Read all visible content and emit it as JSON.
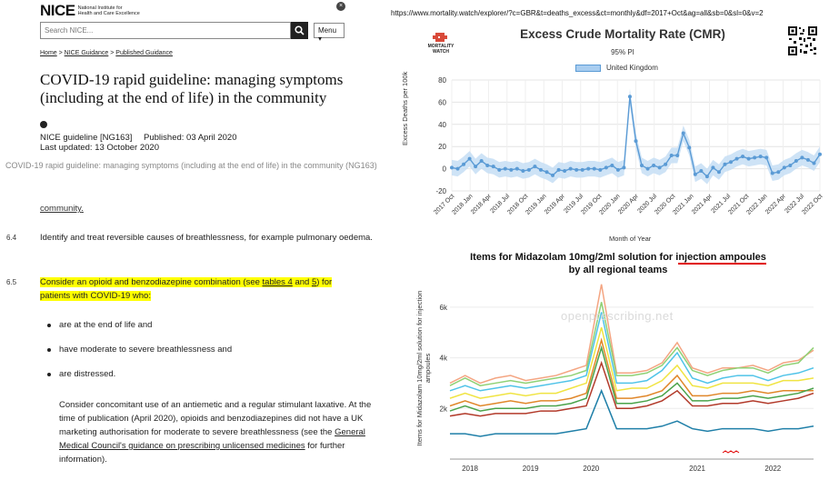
{
  "nice": {
    "logo_mark": "NICE",
    "logo_sub_1": "National Institute for",
    "logo_sub_2": "Health and Care Excellence",
    "search_placeholder": "Search NICE...",
    "menu_label": "Menu ▾",
    "breadcrumb": [
      "Home",
      "NICE Guidance",
      "Published Guidance"
    ],
    "title": "COVID-19 rapid guideline: managing symptoms (including at the end of life) in the community",
    "guideline_code": "NICE guideline [NG163]",
    "published": "Published: 03 April 2020",
    "updated": "Last updated: 13 October 2020",
    "grey_header": "COVID-19 rapid guideline: managing symptoms (including at the end of life) in the community (NG163)",
    "community_link": "community",
    "p64_num": "6.4",
    "p64_text": "Identify and treat reversible causes of breathlessness, for example pulmonary oedema.",
    "p65_num": "6.5",
    "p65_text_a": "Consider an opioid and benzodiazepine combination (see ",
    "p65_link_a": "tables 4",
    "p65_text_b": " and ",
    "p65_link_b": "5",
    "p65_text_c": ") for",
    "p65_line2": "patients with COVID-19 who:",
    "bullets": [
      "are at the end of life and",
      "have moderate to severe breathlessness and",
      "are distressed."
    ],
    "conc_a": "Consider concomitant use of an antiemetic and a regular stimulant laxative. At the time of publication (April 2020), opioids and benzodiazepines did not have a UK marketing authorisation for moderate to severe breathlessness (see the ",
    "conc_link": "General Medical Council's guidance on prescribing unlicensed medicines",
    "conc_b": " for further information)."
  },
  "url": "https://www.mortality.watch/explorer/?c=GBR&t=deaths_excess&ct=monthly&df=2017+Oct&ag=all&sb=0&sl=0&v=2",
  "mw_logo_text": "MORTALITY WATCH",
  "cmr": {
    "title": "Excess Crude Mortality Rate (CMR)",
    "subtitle": "95% PI",
    "legend": "United Kingdom",
    "ylabel": "Excess Deaths per 100k",
    "xlabel": "Month of Year",
    "colors": {
      "line": "#5b9bd5",
      "band": "#c6def4"
    }
  },
  "mid": {
    "title_a": "Items for Midazolam 10mg/2ml solution for i",
    "title_ul": "njection ampoules",
    "title_line2": "by all regional teams",
    "ylabel": "Items for Midazolam 10mg/2ml solution for injection ampoules",
    "watermark": "openprescribing.net"
  },
  "chart_data": [
    {
      "type": "line",
      "title": "Excess Crude Mortality Rate (CMR)",
      "subtitle": "95% PI",
      "xlabel": "Month of Year",
      "ylabel": "Excess Deaths per 100k",
      "ylim": [
        -20,
        80
      ],
      "yticks": [
        -20,
        0,
        20,
        40,
        60,
        80
      ],
      "xticks": [
        "2017 Oct",
        "2018 Jan",
        "2018 Apr",
        "2018 Jul",
        "2018 Oct",
        "2019 Jan",
        "2019 Apr",
        "2019 Jul",
        "2019 Oct",
        "2020 Jan",
        "2020 Apr",
        "2020 Jul",
        "2020 Oct",
        "2021 Jan",
        "2021 Apr",
        "2021 Jul",
        "2021 Oct",
        "2022 Jan",
        "2022 Apr",
        "2022 Jul",
        "2022 Oct"
      ],
      "grid": true,
      "legend_position": "top",
      "series": [
        {
          "name": "United Kingdom",
          "x": [
            "2017 Oct",
            "2017 Nov",
            "2017 Dec",
            "2018 Jan",
            "2018 Feb",
            "2018 Mar",
            "2018 Apr",
            "2018 May",
            "2018 Jun",
            "2018 Jul",
            "2018 Aug",
            "2018 Sep",
            "2018 Oct",
            "2018 Nov",
            "2018 Dec",
            "2019 Jan",
            "2019 Feb",
            "2019 Mar",
            "2019 Apr",
            "2019 May",
            "2019 Jun",
            "2019 Jul",
            "2019 Aug",
            "2019 Sep",
            "2019 Oct",
            "2019 Nov",
            "2019 Dec",
            "2020 Jan",
            "2020 Feb",
            "2020 Mar",
            "2020 Apr",
            "2020 May",
            "2020 Jun",
            "2020 Jul",
            "2020 Aug",
            "2020 Sep",
            "2020 Oct",
            "2020 Nov",
            "2020 Dec",
            "2021 Jan",
            "2021 Feb",
            "2021 Mar",
            "2021 Apr",
            "2021 May",
            "2021 Jun",
            "2021 Jul",
            "2021 Aug",
            "2021 Sep",
            "2021 Oct",
            "2021 Nov",
            "2021 Dec",
            "2022 Jan",
            "2022 Feb",
            "2022 Mar",
            "2022 Apr",
            "2022 May",
            "2022 Jun",
            "2022 Jul",
            "2022 Aug",
            "2022 Sep",
            "2022 Oct",
            "2022 Nov",
            "2022 Dec"
          ],
          "values": [
            1,
            0,
            4,
            9,
            2,
            7,
            3,
            2,
            -1,
            0,
            -1,
            0,
            -2,
            -1,
            2,
            -1,
            -3,
            -6,
            -1,
            -2,
            0,
            -1,
            -1,
            0,
            0,
            -1,
            1,
            3,
            -1,
            1,
            65,
            25,
            3,
            0,
            3,
            1,
            4,
            12,
            12,
            32,
            19,
            -5,
            -2,
            -7,
            1,
            -3,
            4,
            6,
            9,
            11,
            9,
            10,
            11,
            10,
            -4,
            -3,
            1,
            3,
            7,
            10,
            8,
            5,
            13
          ],
          "band_halfwidth": 7
        }
      ]
    },
    {
      "type": "line",
      "title": "Items for Midazolam 10mg/2ml solution for injection ampoules by all regional teams",
      "ylabel": "Items for Midazolam 10mg/2ml solution for injection ampoules",
      "ylim": [
        0,
        7000
      ],
      "yticks": [
        "2k",
        "4k",
        "6k"
      ],
      "xticks": [
        "2018",
        "2019",
        "2020",
        "2021",
        "2022"
      ],
      "x": [
        "2018 Jan",
        "2018 Apr",
        "2018 Jul",
        "2018 Oct",
        "2019 Jan",
        "2019 Apr",
        "2019 Jul",
        "2019 Oct",
        "2020 Jan",
        "2020 Mar",
        "2020 Apr",
        "2020 May",
        "2020 Jul",
        "2020 Oct",
        "2020 Dec",
        "2021 Jan",
        "2021 Feb",
        "2021 Apr",
        "2021 Jul",
        "2021 Oct",
        "2022 Jan",
        "2022 Apr",
        "2022 Jul",
        "2022 Oct",
        "2022 Dec"
      ],
      "series": [
        {
          "color": "#f4a582",
          "values": [
            3000,
            3300,
            3000,
            3200,
            3300,
            3100,
            3200,
            3300,
            3500,
            3700,
            6900,
            3400,
            3400,
            3500,
            3800,
            4600,
            3600,
            3400,
            3600,
            3600,
            3700,
            3500,
            3800,
            3900,
            4300
          ]
        },
        {
          "color": "#8fd175",
          "values": [
            2900,
            3200,
            2900,
            3000,
            3100,
            3000,
            3100,
            3200,
            3300,
            3500,
            6200,
            3300,
            3300,
            3400,
            3700,
            4400,
            3500,
            3300,
            3500,
            3600,
            3600,
            3400,
            3700,
            3800,
            4400
          ]
        },
        {
          "color": "#4fc3e8",
          "values": [
            2700,
            2900,
            2700,
            2800,
            2900,
            2800,
            2900,
            3000,
            3100,
            3300,
            5800,
            3000,
            3000,
            3100,
            3500,
            4200,
            3200,
            3000,
            3200,
            3300,
            3300,
            3100,
            3300,
            3400,
            3600
          ]
        },
        {
          "color": "#f0e442",
          "values": [
            2400,
            2600,
            2400,
            2500,
            2600,
            2500,
            2600,
            2600,
            2800,
            3000,
            5200,
            2700,
            2800,
            2800,
            3100,
            3700,
            2900,
            2800,
            3000,
            3000,
            3000,
            2900,
            3100,
            3100,
            3200
          ]
        },
        {
          "color": "#e0872a",
          "values": [
            2100,
            2300,
            2100,
            2200,
            2300,
            2200,
            2300,
            2300,
            2400,
            2600,
            4700,
            2400,
            2400,
            2500,
            2700,
            3300,
            2500,
            2500,
            2600,
            2600,
            2700,
            2600,
            2700,
            2700,
            2700
          ]
        },
        {
          "color": "#4aa34a",
          "values": [
            1900,
            2100,
            1900,
            2000,
            2000,
            2000,
            2100,
            2100,
            2200,
            2400,
            4400,
            2200,
            2200,
            2300,
            2500,
            3000,
            2300,
            2300,
            2400,
            2400,
            2500,
            2400,
            2500,
            2600,
            2800
          ]
        },
        {
          "color": "#b23a2a",
          "values": [
            1700,
            1800,
            1700,
            1800,
            1800,
            1800,
            1900,
            1900,
            2000,
            2100,
            3800,
            2000,
            2000,
            2100,
            2300,
            2700,
            2100,
            2100,
            2200,
            2200,
            2300,
            2200,
            2300,
            2400,
            2600
          ]
        },
        {
          "color": "#1f7fa8",
          "values": [
            1000,
            1000,
            900,
            1000,
            1000,
            1000,
            1000,
            1000,
            1100,
            1200,
            2700,
            1200,
            1200,
            1200,
            1300,
            1500,
            1200,
            1100,
            1200,
            1200,
            1200,
            1100,
            1200,
            1200,
            1300
          ]
        }
      ]
    }
  ]
}
